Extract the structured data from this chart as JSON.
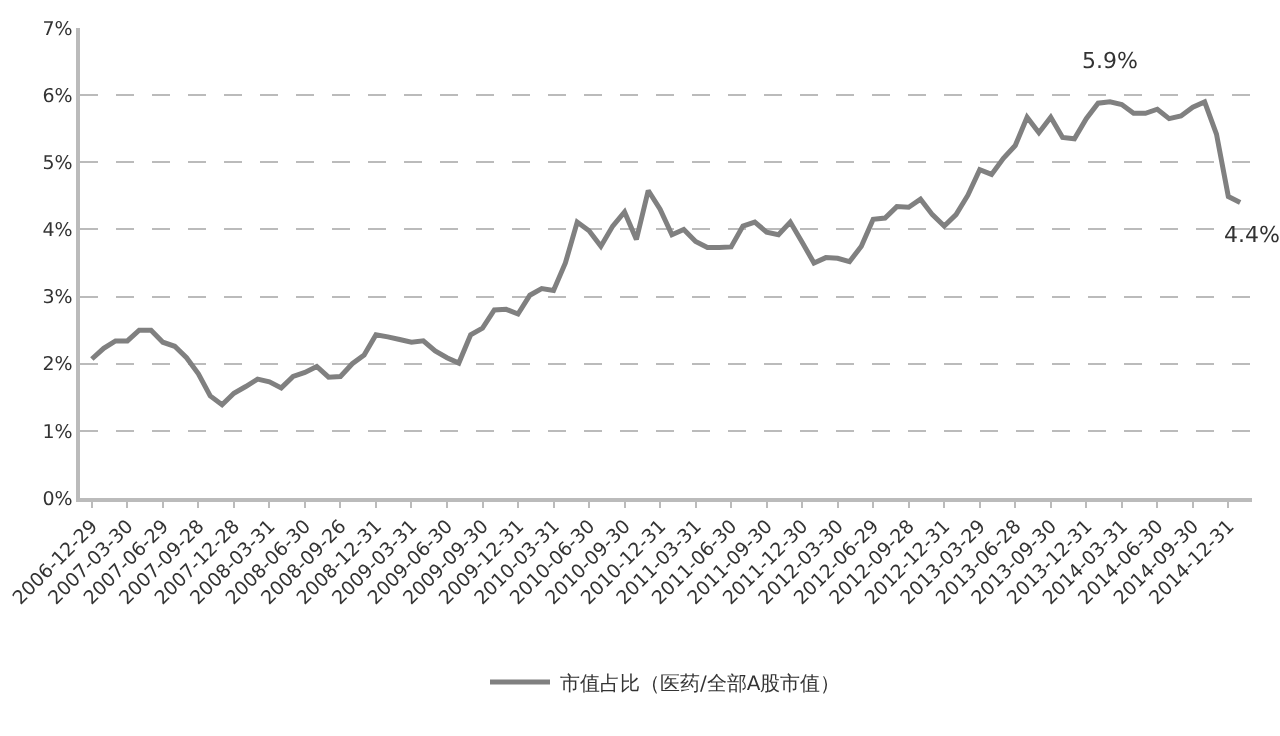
{
  "chart_data": {
    "type": "line",
    "categories": [
      "2006-12-29",
      null,
      null,
      "2007-03-30",
      null,
      null,
      "2007-06-29",
      null,
      null,
      "2007-09-28",
      null,
      null,
      "2007-12-28",
      null,
      null,
      "2008-03-31",
      null,
      null,
      "2008-06-30",
      null,
      null,
      "2008-09-26",
      null,
      null,
      "2008-12-31",
      null,
      null,
      "2009-03-31",
      null,
      null,
      "2009-06-30",
      null,
      null,
      "2009-09-30",
      null,
      null,
      "2009-12-31",
      null,
      null,
      "2010-03-31",
      null,
      null,
      "2010-06-30",
      null,
      null,
      "2010-09-30",
      null,
      null,
      "2010-12-31",
      null,
      null,
      "2011-03-31",
      null,
      null,
      "2011-06-30",
      null,
      null,
      "2011-09-30",
      null,
      null,
      "2011-12-30",
      null,
      null,
      "2012-03-30",
      null,
      null,
      "2012-06-29",
      null,
      null,
      "2012-09-28",
      null,
      null,
      "2012-12-31",
      null,
      null,
      "2013-03-29",
      null,
      null,
      "2013-06-28",
      null,
      null,
      "2013-09-30",
      null,
      null,
      "2013-12-31",
      null,
      null,
      "2014-03-31",
      null,
      null,
      "2014-06-30",
      null,
      null,
      "2014-09-30",
      null,
      null,
      "2014-12-31",
      null
    ],
    "series": [
      {
        "name": "市值占比（医药/全部A股市值）",
        "color": "#808080",
        "values": [
          2.07,
          2.23,
          2.34,
          2.34,
          2.5,
          2.5,
          2.32,
          2.26,
          2.09,
          1.85,
          1.52,
          1.39,
          1.56,
          1.66,
          1.77,
          1.73,
          1.64,
          1.81,
          1.87,
          1.96,
          1.8,
          1.81,
          2.0,
          2.13,
          2.43,
          2.4,
          2.36,
          2.32,
          2.34,
          2.19,
          2.09,
          2.01,
          2.43,
          2.53,
          2.8,
          2.81,
          2.74,
          3.02,
          3.12,
          3.09,
          3.5,
          4.11,
          3.98,
          3.75,
          4.05,
          4.26,
          3.85,
          4.58,
          4.3,
          3.92,
          4.0,
          3.82,
          3.73,
          3.73,
          3.74,
          4.05,
          4.11,
          3.96,
          3.92,
          4.11,
          3.81,
          3.5,
          3.58,
          3.57,
          3.52,
          3.75,
          4.15,
          4.17,
          4.34,
          4.33,
          4.45,
          4.22,
          4.05,
          4.22,
          4.51,
          4.89,
          4.82,
          5.06,
          5.25,
          5.67,
          5.44,
          5.67,
          5.37,
          5.35,
          5.65,
          5.88,
          5.9,
          5.86,
          5.73,
          5.73,
          5.79,
          5.65,
          5.69,
          5.82,
          5.9,
          5.42,
          4.49,
          4.4
        ],
        "value_labels": [
          null,
          null,
          null,
          null,
          null,
          null,
          null,
          null,
          null,
          null,
          null,
          null,
          null,
          null,
          null,
          null,
          null,
          null,
          null,
          null,
          null,
          null,
          null,
          null,
          null,
          null,
          null,
          null,
          null,
          null,
          null,
          null,
          null,
          null,
          null,
          null,
          null,
          null,
          null,
          null,
          null,
          null,
          null,
          null,
          null,
          null,
          null,
          null,
          null,
          null,
          null,
          null,
          null,
          null,
          null,
          null,
          null,
          null,
          null,
          null,
          null,
          null,
          null,
          null,
          null,
          null,
          null,
          null,
          null,
          null,
          null,
          null,
          null,
          null,
          null,
          null,
          null,
          null,
          null,
          null,
          null,
          null,
          null,
          null,
          null,
          null,
          "5.9%",
          null,
          null,
          null,
          null,
          null,
          null,
          null,
          null,
          null,
          null,
          "4.4%"
        ]
      }
    ],
    "ylim": [
      0,
      7
    ],
    "yticks": [
      {
        "value": 0,
        "label": "0%"
      },
      {
        "value": 1,
        "label": "1%"
      },
      {
        "value": 2,
        "label": "2%"
      },
      {
        "value": 3,
        "label": "3%"
      },
      {
        "value": 4,
        "label": "4%"
      },
      {
        "value": 5,
        "label": "5%"
      },
      {
        "value": 6,
        "label": "6%"
      },
      {
        "value": 7,
        "label": "7%"
      }
    ],
    "grid": "y",
    "legend": "bottom",
    "marker": "none",
    "line_style": "solid"
  }
}
